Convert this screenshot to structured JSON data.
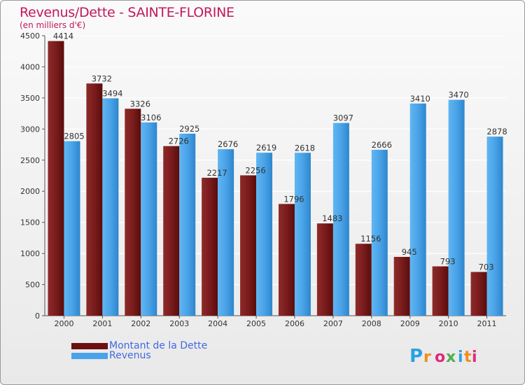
{
  "header": {
    "title": "Revenus/Dette - SAINTE-FLORINE",
    "subtitle": "(en milliers d'€)"
  },
  "chart_data": {
    "type": "bar",
    "title": "Revenus/Dette - SAINTE-FLORINE",
    "subtitle": "(en milliers d'€)",
    "xlabel": "",
    "ylabel": "",
    "ylim": [
      0,
      4500
    ],
    "yticks": [
      0,
      500,
      1000,
      1500,
      2000,
      2500,
      3000,
      3500,
      4000,
      4500
    ],
    "grid": true,
    "legend_position": "bottom-left",
    "categories": [
      "2000",
      "2001",
      "2002",
      "2003",
      "2004",
      "2005",
      "2006",
      "2007",
      "2008",
      "2009",
      "2010",
      "2011"
    ],
    "series": [
      {
        "name": "Montant de la Dette",
        "color": "#7b1a1a",
        "values": [
          4414,
          3732,
          3326,
          2726,
          2217,
          2256,
          1796,
          1483,
          1156,
          945,
          793,
          703
        ]
      },
      {
        "name": "Revenus",
        "color": "#4aa3e8",
        "values": [
          2805,
          3494,
          3106,
          2925,
          2676,
          2619,
          2618,
          3097,
          2666,
          3410,
          3470,
          2878
        ]
      }
    ]
  },
  "legend": {
    "items": [
      {
        "label": "Montant de la Dette",
        "color": "#6b0f0f"
      },
      {
        "label": "Revenus",
        "color": "#4aa3e8"
      }
    ]
  },
  "logo": {
    "text": "Proxiti",
    "letters": [
      "P",
      "r",
      "o",
      "x",
      "i",
      "t",
      "i"
    ],
    "colors": [
      "#29a3e0",
      "#f28c1b",
      "#e0287f",
      "#4caf50",
      "#29a3e0",
      "#f28c1b",
      "#e0287f"
    ]
  }
}
